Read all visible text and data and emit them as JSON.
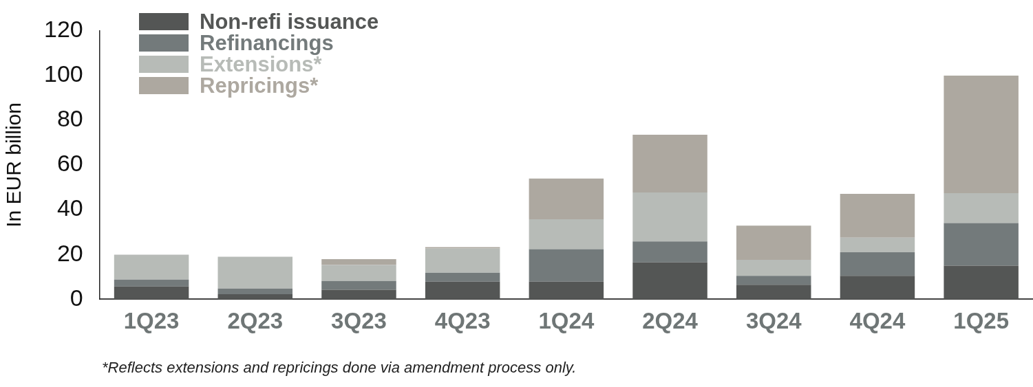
{
  "chart_data": {
    "type": "bar",
    "stacked": true,
    "ylabel": "In EUR billion",
    "categories": [
      "1Q23",
      "2Q23",
      "3Q23",
      "4Q23",
      "1Q24",
      "2Q24",
      "3Q24",
      "4Q24",
      "1Q25"
    ],
    "series": [
      {
        "name": "Non-refi issuance",
        "color": "#545655",
        "values": [
          5.7,
          2.3,
          4.3,
          7.9,
          7.9,
          16.5,
          6.5,
          10.5,
          15.0
        ]
      },
      {
        "name": "Refinancings",
        "color": "#737a7b",
        "values": [
          3.1,
          2.5,
          3.9,
          4.0,
          14.5,
          9.3,
          4.0,
          10.5,
          19.0
        ]
      },
      {
        "name": "Extensions*",
        "color": "#b7bbb7",
        "values": [
          11.1,
          14.2,
          7.1,
          10.8,
          13.3,
          21.9,
          7.1,
          6.5,
          13.4
        ]
      },
      {
        "name": "Repricings*",
        "color": "#ada8a0",
        "values": [
          0,
          0,
          2.6,
          0.6,
          18.2,
          25.8,
          15.3,
          19.6,
          52.5
        ]
      }
    ],
    "ylim": [
      0,
      120
    ],
    "yticks": [
      0,
      20,
      40,
      60,
      80,
      100,
      120
    ],
    "grid": false,
    "legend": "top left",
    "annotations": [
      "*Reflects extensions and repricings done via amendment process only."
    ]
  }
}
